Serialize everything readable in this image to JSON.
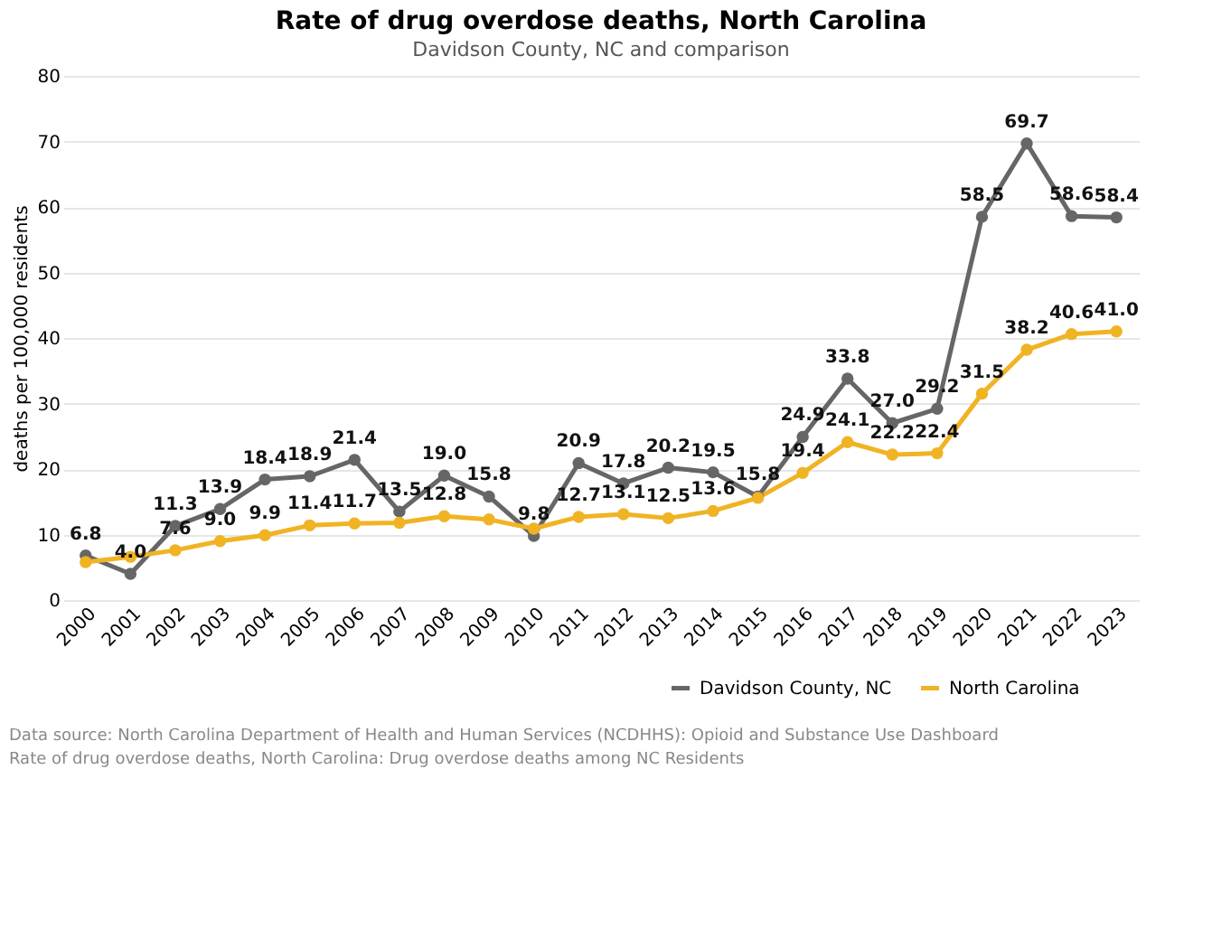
{
  "chart_data": {
    "type": "line",
    "title": "Rate of drug overdose deaths, North Carolina",
    "subtitle": "Davidson County, NC and comparison",
    "ylabel": "deaths per 100,000 residents",
    "categories": [
      "2000",
      "2001",
      "2002",
      "2003",
      "2004",
      "2005",
      "2006",
      "2007",
      "2008",
      "2009",
      "2010",
      "2011",
      "2012",
      "2013",
      "2014",
      "2015",
      "2016",
      "2017",
      "2018",
      "2019",
      "2020",
      "2021",
      "2022",
      "2023"
    ],
    "series": [
      {
        "name": "Davidson County, NC",
        "color": "#666666",
        "values": [
          6.8,
          4.0,
          11.3,
          13.9,
          18.4,
          18.9,
          21.4,
          13.5,
          19.0,
          15.8,
          9.8,
          20.9,
          17.8,
          20.2,
          19.5,
          15.8,
          24.9,
          33.8,
          27.0,
          29.2,
          58.5,
          69.7,
          58.6,
          58.4
        ],
        "value_labels": [
          "6.8",
          "4.0",
          "11.3",
          "13.9",
          "18.4",
          "18.9",
          "21.4",
          "13.5",
          "19.0",
          "15.8",
          "9.8",
          "20.9",
          "17.8",
          "20.2",
          "19.5",
          "15.8",
          "24.9",
          "33.8",
          "27.0",
          "29.2",
          "58.5",
          "69.7",
          "58.6",
          "58.4"
        ]
      },
      {
        "name": "North Carolina",
        "color": "#f0b323",
        "values": [
          5.8,
          6.6,
          7.6,
          9.0,
          9.9,
          11.4,
          11.7,
          11.8,
          12.8,
          12.3,
          10.9,
          12.7,
          13.1,
          12.5,
          13.6,
          15.6,
          19.4,
          24.1,
          22.2,
          22.4,
          31.5,
          38.2,
          40.6,
          41.0
        ],
        "value_labels": [
          null,
          null,
          "7.6",
          "9.0",
          "9.9",
          "11.4",
          "11.7",
          null,
          "12.8",
          null,
          null,
          "12.7",
          "13.1",
          "12.5",
          "13.6",
          null,
          "19.4",
          "24.1",
          "22.2",
          "22.4",
          "31.5",
          "38.2",
          "40.6",
          "41.0"
        ]
      }
    ],
    "ylim": [
      0,
      80
    ],
    "yticks": [
      0,
      10,
      20,
      30,
      40,
      50,
      60,
      70,
      80
    ],
    "grid": "y",
    "legend": "bottom right",
    "marker": "circle",
    "line_style": "solid",
    "annotations": [
      "Data source: North Carolina Department of Health and Human Services (NCDHHS): Opioid and Substance Use Dashboard",
      "Rate of drug overdose deaths, North Carolina: Drug overdose deaths among NC Residents"
    ]
  }
}
